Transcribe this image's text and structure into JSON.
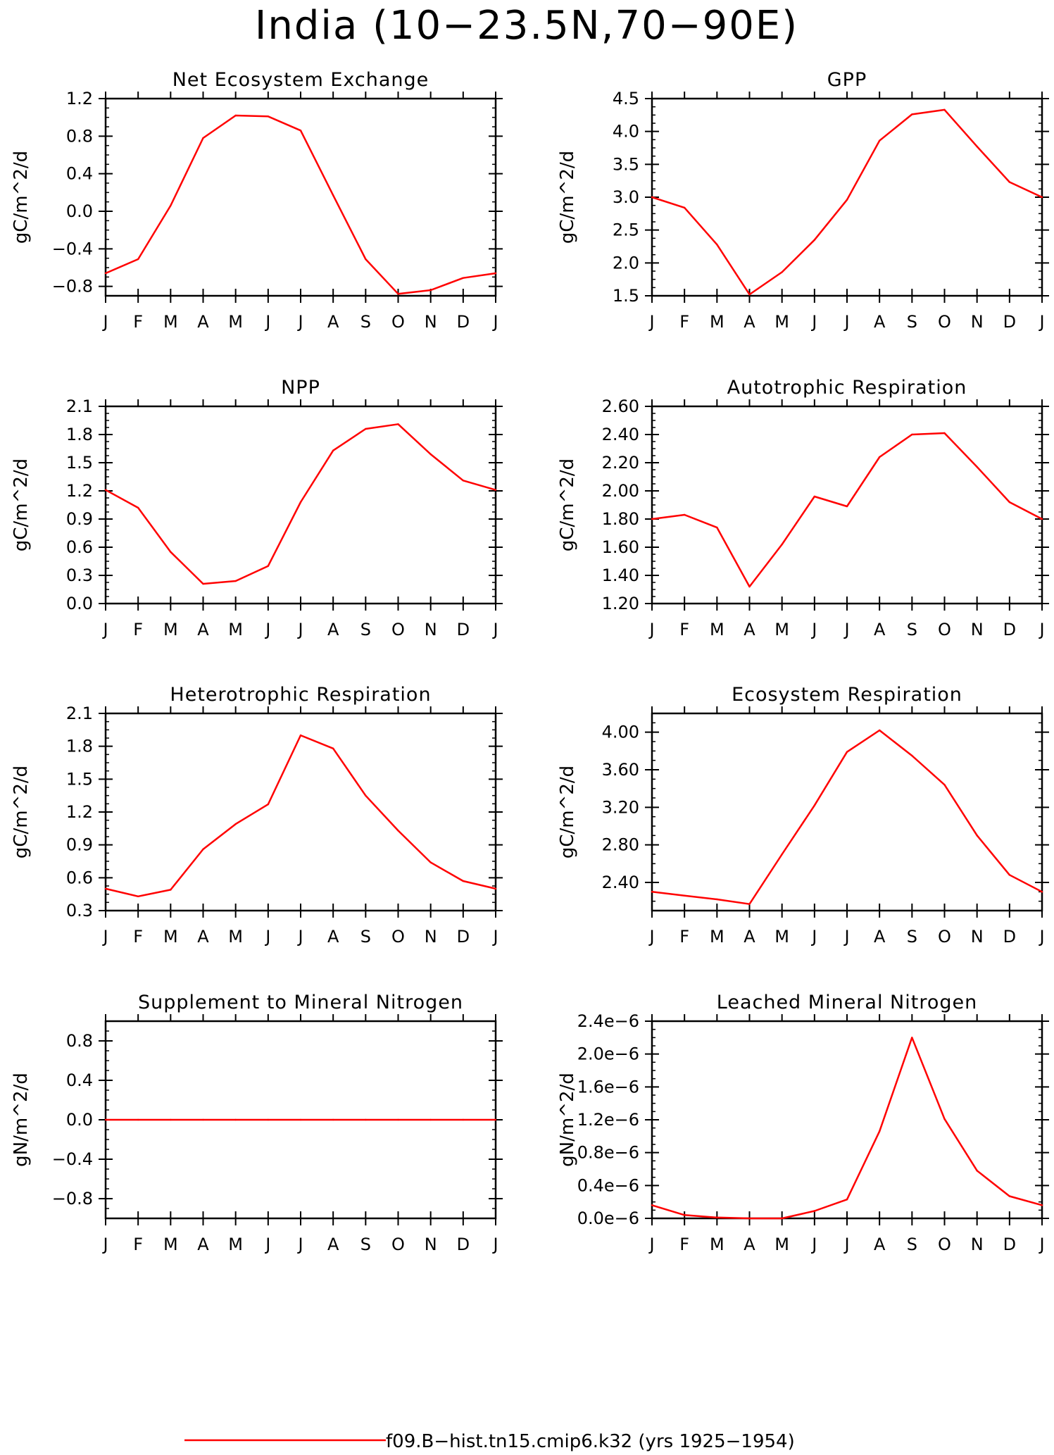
{
  "figure": {
    "title": "India (10−23.5N,70−90E)",
    "legend": {
      "label": "f09.B−hist.tn15.cmip6.k32 (yrs 1925−1954)",
      "color": "#ff0000"
    }
  },
  "chart_data": [
    {
      "type": "line",
      "title": "Net Ecosystem Exchange",
      "ylabel": "gC/m^2/d",
      "categories": [
        "J",
        "F",
        "M",
        "A",
        "M",
        "J",
        "J",
        "A",
        "S",
        "O",
        "N",
        "D",
        "J"
      ],
      "ylim": [
        -0.9,
        1.2
      ],
      "yticks": [
        -0.8,
        -0.4,
        0.0,
        0.4,
        0.8,
        1.2
      ],
      "ytick_labels": [
        "−0.8",
        "−0.4",
        "0.0",
        "0.4",
        "0.8",
        "1.2"
      ],
      "series": [
        {
          "color": "#ff0000",
          "values": [
            -0.66,
            -0.51,
            0.06,
            0.78,
            1.02,
            1.01,
            0.86,
            0.17,
            -0.51,
            -0.88,
            -0.84,
            -0.71,
            -0.66
          ]
        }
      ]
    },
    {
      "type": "line",
      "title": "GPP",
      "ylabel": "gC/m^2/d",
      "categories": [
        "J",
        "F",
        "M",
        "A",
        "M",
        "J",
        "J",
        "A",
        "S",
        "O",
        "N",
        "D",
        "J"
      ],
      "ylim": [
        1.5,
        4.5
      ],
      "yticks": [
        1.5,
        2.0,
        2.5,
        3.0,
        3.5,
        4.0,
        4.5
      ],
      "ytick_labels": [
        "1.5",
        "2.0",
        "2.5",
        "3.0",
        "3.5",
        "4.0",
        "4.5"
      ],
      "series": [
        {
          "color": "#ff0000",
          "values": [
            3.0,
            2.84,
            2.28,
            1.52,
            1.86,
            2.35,
            2.96,
            3.86,
            4.26,
            4.33,
            3.77,
            3.23,
            3.0
          ]
        }
      ]
    },
    {
      "type": "line",
      "title": "NPP",
      "ylabel": "gC/m^2/d",
      "categories": [
        "J",
        "F",
        "M",
        "A",
        "M",
        "J",
        "J",
        "A",
        "S",
        "O",
        "N",
        "D",
        "J"
      ],
      "ylim": [
        0.0,
        2.1
      ],
      "yticks": [
        0.0,
        0.3,
        0.6,
        0.9,
        1.2,
        1.5,
        1.8,
        2.1
      ],
      "ytick_labels": [
        "0.0",
        "0.3",
        "0.6",
        "0.9",
        "1.2",
        "1.5",
        "1.8",
        "2.1"
      ],
      "series": [
        {
          "color": "#ff0000",
          "values": [
            1.21,
            1.02,
            0.55,
            0.21,
            0.24,
            0.4,
            1.08,
            1.63,
            1.86,
            1.91,
            1.59,
            1.31,
            1.21
          ]
        }
      ]
    },
    {
      "type": "line",
      "title": "Autotrophic Respiration",
      "ylabel": "gC/m^2/d",
      "categories": [
        "J",
        "F",
        "M",
        "A",
        "M",
        "J",
        "J",
        "A",
        "S",
        "O",
        "N",
        "D",
        "J"
      ],
      "ylim": [
        1.2,
        2.6
      ],
      "yticks": [
        1.2,
        1.4,
        1.6,
        1.8,
        2.0,
        2.2,
        2.4,
        2.6
      ],
      "ytick_labels": [
        "1.20",
        "1.40",
        "1.60",
        "1.80",
        "2.00",
        "2.20",
        "2.40",
        "2.60"
      ],
      "series": [
        {
          "color": "#ff0000",
          "values": [
            1.8,
            1.83,
            1.74,
            1.32,
            1.62,
            1.96,
            1.89,
            2.24,
            2.4,
            2.41,
            2.17,
            1.92,
            1.8
          ]
        }
      ]
    },
    {
      "type": "line",
      "title": "Heterotrophic Respiration",
      "ylabel": "gC/m^2/d",
      "categories": [
        "J",
        "F",
        "M",
        "A",
        "M",
        "J",
        "J",
        "A",
        "S",
        "O",
        "N",
        "D",
        "J"
      ],
      "ylim": [
        0.3,
        2.1
      ],
      "yticks": [
        0.3,
        0.6,
        0.9,
        1.2,
        1.5,
        1.8,
        2.1
      ],
      "ytick_labels": [
        "0.3",
        "0.6",
        "0.9",
        "1.2",
        "1.5",
        "1.8",
        "2.1"
      ],
      "series": [
        {
          "color": "#ff0000",
          "values": [
            0.5,
            0.43,
            0.49,
            0.86,
            1.09,
            1.27,
            1.9,
            1.78,
            1.35,
            1.03,
            0.74,
            0.57,
            0.5
          ]
        }
      ]
    },
    {
      "type": "line",
      "title": "Ecosystem Respiration",
      "ylabel": "gC/m^2/d",
      "categories": [
        "J",
        "F",
        "M",
        "A",
        "M",
        "J",
        "J",
        "A",
        "S",
        "O",
        "N",
        "D",
        "J"
      ],
      "ylim": [
        2.1,
        4.2
      ],
      "yticks": [
        2.4,
        2.8,
        3.2,
        3.6,
        4.0
      ],
      "ytick_labels": [
        "2.40",
        "2.80",
        "3.20",
        "3.60",
        "4.00"
      ],
      "series": [
        {
          "color": "#ff0000",
          "values": [
            2.3,
            2.26,
            2.22,
            2.17,
            2.7,
            3.22,
            3.79,
            4.02,
            3.75,
            3.44,
            2.9,
            2.48,
            2.3
          ]
        }
      ]
    },
    {
      "type": "line",
      "title": "Supplement to Mineral Nitrogen",
      "ylabel": "gN/m^2/d",
      "categories": [
        "J",
        "F",
        "M",
        "A",
        "M",
        "J",
        "J",
        "A",
        "S",
        "O",
        "N",
        "D",
        "J"
      ],
      "ylim": [
        -1.0,
        1.0
      ],
      "yticks": [
        -0.8,
        -0.4,
        0.0,
        0.4,
        0.8
      ],
      "ytick_labels": [
        "−0.8",
        "−0.4",
        "0.0",
        "0.4",
        "0.8"
      ],
      "series": [
        {
          "color": "#ff0000",
          "values": [
            0,
            0,
            0,
            0,
            0,
            0,
            0,
            0,
            0,
            0,
            0,
            0,
            0
          ]
        }
      ]
    },
    {
      "type": "line",
      "title": "Leached Mineral Nitrogen",
      "ylabel": "gN/m^2/d",
      "categories": [
        "J",
        "F",
        "M",
        "A",
        "M",
        "J",
        "J",
        "A",
        "S",
        "O",
        "N",
        "D",
        "J"
      ],
      "ylim": [
        0.0,
        2.4e-06
      ],
      "yticks": [
        0.0,
        4e-07,
        8e-07,
        1.2e-06,
        1.6e-06,
        2e-06,
        2.4e-06
      ],
      "ytick_labels": [
        "0.0e−6",
        "0.4e−6",
        "0.8e−6",
        "1.2e−6",
        "1.6e−6",
        "2.0e−6",
        "2.4e−6"
      ],
      "series": [
        {
          "color": "#ff0000",
          "values": [
            1.6e-07,
            4e-08,
            1e-08,
            0.0,
            0.0,
            9e-08,
            2.3e-07,
            1.06e-06,
            2.2e-06,
            1.21e-06,
            5.8e-07,
            2.7e-07,
            1.6e-07
          ]
        }
      ]
    }
  ]
}
